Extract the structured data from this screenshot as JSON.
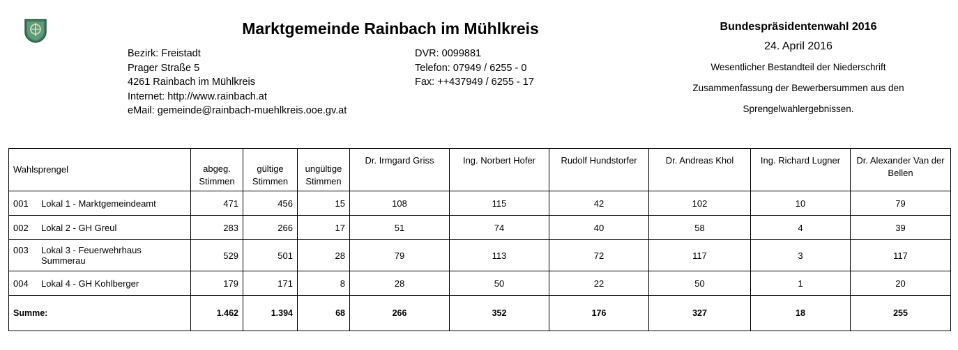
{
  "header": {
    "title": "Marktgemeinde Rainbach im Mühlkreis",
    "crest_icon": "municipal-crest",
    "address_lines": [
      "Bezirk: Freistadt",
      "Prager Straße 5",
      "4261 Rainbach im Mühlkreis",
      "Internet: http://www.rainbach.at",
      "eMail: gemeinde@rainbach-muehlkreis.ooe.gv.at"
    ],
    "contact_lines": [
      "DVR: 0099881",
      "Telefon: 07949 / 6255 - 0",
      "Fax: ++437949 / 6255 - 17"
    ]
  },
  "election": {
    "title": "Bundespräsidentenwahl 2016",
    "date": "24. April 2016",
    "line1": "Wesentlicher Bestandteil der Niederschrift",
    "line2": "Zusammenfassung der Bewerbersummen aus den",
    "line3": "Sprengelwahlergebnissen."
  },
  "table": {
    "headers": {
      "sprengel": "Wahlsprengel",
      "abgeg": "abgeg. Stimmen",
      "gueltige": "gültige Stimmen",
      "ungueltige": "ungültige Stimmen"
    },
    "candidates": [
      "Dr. Irmgard Griss",
      "Ing. Norbert Hofer",
      "Rudolf Hundstorfer",
      "Dr. Andreas Khol",
      "Ing. Richard Lugner",
      "Dr. Alexander Van der Bellen"
    ],
    "rows": [
      {
        "no": "001",
        "name": "Lokal 1 - Marktgemeindeamt",
        "abgeg": "471",
        "gueltige": "456",
        "ungueltige": "15",
        "votes": [
          "108",
          "115",
          "42",
          "102",
          "10",
          "79"
        ]
      },
      {
        "no": "002",
        "name": "Lokal 2 - GH Greul",
        "abgeg": "283",
        "gueltige": "266",
        "ungueltige": "17",
        "votes": [
          "51",
          "74",
          "40",
          "58",
          "4",
          "39"
        ]
      },
      {
        "no": "003",
        "name": "Lokal 3 - Feuerwehrhaus Summerau",
        "abgeg": "529",
        "gueltige": "501",
        "ungueltige": "28",
        "votes": [
          "79",
          "113",
          "72",
          "117",
          "3",
          "117"
        ]
      },
      {
        "no": "004",
        "name": "Lokal 4 - GH Kohlberger",
        "abgeg": "179",
        "gueltige": "171",
        "ungueltige": "8",
        "votes": [
          "28",
          "50",
          "22",
          "50",
          "1",
          "20"
        ]
      }
    ],
    "sum": {
      "label": "Summe:",
      "abgeg": "1.462",
      "gueltige": "1.394",
      "ungueltige": "68",
      "votes": [
        "266",
        "352",
        "176",
        "327",
        "18",
        "255"
      ]
    }
  }
}
